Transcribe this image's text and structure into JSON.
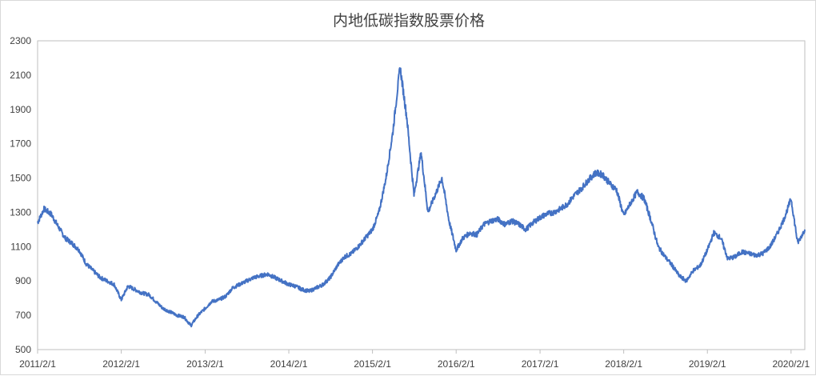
{
  "chart_data": {
    "type": "line",
    "title": "内地低碳指数股票价格",
    "xlabel": "",
    "ylabel": "",
    "ylim": [
      500,
      2300
    ],
    "y_ticks": [
      500,
      700,
      900,
      1100,
      1300,
      1500,
      1700,
      1900,
      2100,
      2300
    ],
    "x_ticks": [
      "2011/2/1",
      "2012/2/1",
      "2013/2/1",
      "2014/2/1",
      "2015/2/1",
      "2016/2/1",
      "2017/2/1",
      "2018/2/1",
      "2019/2/1",
      "2020/2/1"
    ],
    "x_range": [
      "2011/2/1",
      "2020/4/1"
    ],
    "grid": false,
    "legend": "none",
    "line_color": "#4472C4",
    "series": [
      {
        "x": [
          "2011/2/1",
          "2011/3/1",
          "2011/4/1",
          "2011/5/1",
          "2011/6/1",
          "2011/7/1",
          "2011/8/1",
          "2011/9/1",
          "2011/10/1",
          "2011/11/1",
          "2011/12/1",
          "2012/1/1",
          "2012/2/1",
          "2012/3/1",
          "2012/4/1",
          "2012/5/1",
          "2012/6/1",
          "2012/7/1",
          "2012/8/1",
          "2012/9/1",
          "2012/10/1",
          "2012/11/1",
          "2012/12/1",
          "2013/1/1",
          "2013/2/1",
          "2013/3/1",
          "2013/4/1",
          "2013/5/1",
          "2013/6/1",
          "2013/7/1",
          "2013/8/1",
          "2013/9/1",
          "2013/10/1",
          "2013/11/1",
          "2013/12/1",
          "2014/1/1",
          "2014/2/1",
          "2014/3/1",
          "2014/4/1",
          "2014/5/1",
          "2014/6/1",
          "2014/7/1",
          "2014/8/1",
          "2014/9/1",
          "2014/10/1",
          "2014/11/1",
          "2014/12/1",
          "2015/1/1",
          "2015/2/1",
          "2015/3/1",
          "2015/4/1",
          "2015/5/1",
          "2015/6/1",
          "2015/7/1",
          "2015/8/1",
          "2015/9/1",
          "2015/10/1",
          "2015/11/1",
          "2015/12/1",
          "2016/1/1",
          "2016/2/1",
          "2016/3/1",
          "2016/4/1",
          "2016/5/1",
          "2016/6/1",
          "2016/7/1",
          "2016/8/1",
          "2016/9/1",
          "2016/10/1",
          "2016/11/1",
          "2016/12/1",
          "2017/1/1",
          "2017/2/1",
          "2017/3/1",
          "2017/4/1",
          "2017/5/1",
          "2017/6/1",
          "2017/7/1",
          "2017/8/1",
          "2017/9/1",
          "2017/10/1",
          "2017/11/1",
          "2017/12/1",
          "2018/1/1",
          "2018/2/1",
          "2018/3/1",
          "2018/4/1",
          "2018/5/1",
          "2018/6/1",
          "2018/7/1",
          "2018/8/1",
          "2018/9/1",
          "2018/10/1",
          "2018/11/1",
          "2018/12/1",
          "2019/1/1",
          "2019/2/1",
          "2019/3/1",
          "2019/4/1",
          "2019/5/1",
          "2019/6/1",
          "2019/7/1",
          "2019/8/1",
          "2019/9/1",
          "2019/10/1",
          "2019/11/1",
          "2019/12/1",
          "2020/1/1",
          "2020/2/1",
          "2020/3/1",
          "2020/4/1"
        ],
        "y": [
          1240,
          1320,
          1290,
          1220,
          1150,
          1120,
          1080,
          1000,
          960,
          920,
          900,
          880,
          790,
          870,
          850,
          830,
          820,
          780,
          740,
          720,
          700,
          690,
          640,
          700,
          740,
          780,
          790,
          810,
          860,
          880,
          900,
          920,
          930,
          940,
          920,
          900,
          880,
          870,
          850,
          840,
          860,
          880,
          920,
          990,
          1040,
          1060,
          1100,
          1150,
          1200,
          1300,
          1500,
          1770,
          2150,
          1850,
          1400,
          1650,
          1300,
          1400,
          1500,
          1250,
          1080,
          1150,
          1180,
          1170,
          1230,
          1250,
          1260,
          1230,
          1250,
          1230,
          1200,
          1240,
          1270,
          1290,
          1300,
          1320,
          1350,
          1400,
          1440,
          1490,
          1530,
          1520,
          1470,
          1430,
          1280,
          1350,
          1420,
          1380,
          1250,
          1100,
          1040,
          990,
          930,
          900,
          960,
          990,
          1080,
          1180,
          1150,
          1030,
          1040,
          1070,
          1060,
          1050,
          1060,
          1100,
          1170,
          1260,
          1380,
          1120,
          1200
        ]
      }
    ]
  }
}
